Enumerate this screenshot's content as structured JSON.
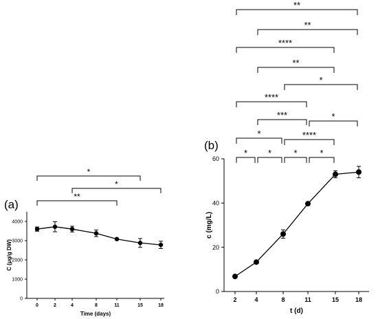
{
  "chart_data": [
    {
      "panel_label": "(a)",
      "type": "line",
      "x": [
        0,
        2,
        4,
        8,
        11,
        15,
        18
      ],
      "y": [
        3600,
        3720,
        3600,
        3380,
        3080,
        2880,
        2780
      ],
      "y_err": [
        110,
        260,
        150,
        170,
        50,
        230,
        190
      ],
      "xlabel": "Time (days)",
      "ylabel": "C (μg/g DW)",
      "xticks": [
        "0",
        "2",
        "4",
        "8",
        "11",
        "15",
        "18"
      ],
      "yticks": [
        "0",
        "1000",
        "2000",
        "3000",
        "4000"
      ],
      "ylim": [
        0,
        4500
      ],
      "significance": [
        {
          "from": "0",
          "to": "15",
          "label": "*"
        },
        {
          "from": "4",
          "to": "18",
          "label": "*"
        },
        {
          "from": "0",
          "to": "11",
          "label": "**"
        }
      ]
    },
    {
      "panel_label": "(b)",
      "type": "line",
      "x": [
        2,
        4,
        8,
        11,
        15,
        18
      ],
      "y": [
        6.8,
        13.3,
        26,
        39.7,
        53,
        54
      ],
      "y_err": [
        0.5,
        0.6,
        1.9,
        0.6,
        1.6,
        2.6
      ],
      "xlabel": "t (d)",
      "ylabel": "c (mg/L)",
      "xticks": [
        "2",
        "4",
        "8",
        "11",
        "15",
        "18"
      ],
      "yticks": [
        "0",
        "20",
        "40",
        "60"
      ],
      "ylim": [
        0,
        60
      ],
      "significance": [
        {
          "from": "2",
          "to": "18",
          "label": "**"
        },
        {
          "from": "4",
          "to": "18",
          "label": "**"
        },
        {
          "from": "2",
          "to": "15",
          "label": "****"
        },
        {
          "from": "4",
          "to": "15",
          "label": "**"
        },
        {
          "from": "8",
          "to": "18",
          "label": "*"
        },
        {
          "from": "2",
          "to": "11",
          "label": "****"
        },
        {
          "from": "4",
          "to": "11",
          "label": "***"
        },
        {
          "from": "11",
          "to": "18",
          "label": "*"
        },
        {
          "from": "2",
          "to": "8",
          "label": "*"
        },
        {
          "from": "8",
          "to": "15",
          "label": "****"
        },
        {
          "from": "2",
          "to": "4",
          "label": "*"
        },
        {
          "from": "4",
          "to": "8",
          "label": "*"
        },
        {
          "from": "8",
          "to": "11",
          "label": "*"
        },
        {
          "from": "11",
          "to": "15",
          "label": "*"
        }
      ]
    }
  ]
}
